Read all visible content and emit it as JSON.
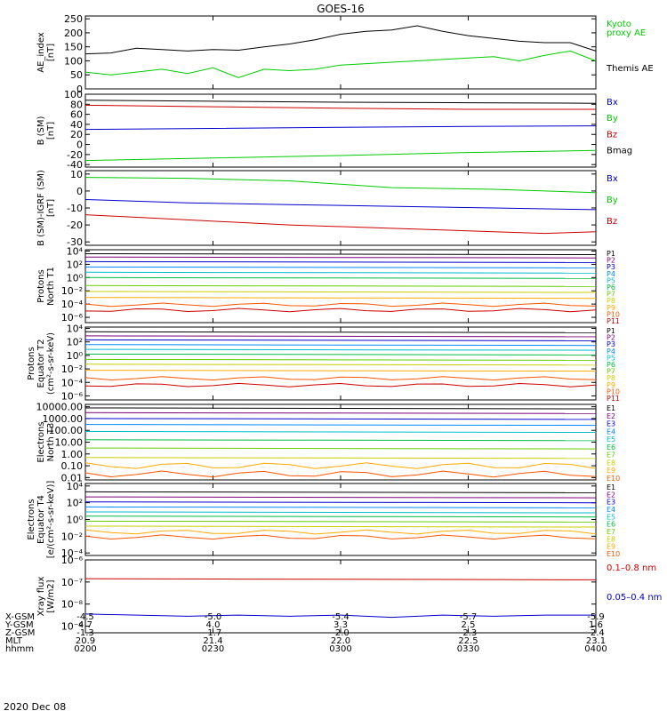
{
  "title": "GOES-16",
  "colors": {
    "black": "#000000",
    "green": "#00cc00",
    "blue": "#0000cc",
    "red": "#cc0000",
    "p": [
      "#000000",
      "#7a007a",
      "#0000cc",
      "#0088ff",
      "#00bbcc",
      "#00bb44",
      "#66cc00",
      "#cccc00",
      "#ffaa00",
      "#ff5500",
      "#cc0000"
    ]
  },
  "chart_data": [
    {
      "id": "ae",
      "type": "line",
      "ylabel": [
        "AE_index",
        "[nT]"
      ],
      "ticks": [
        "250",
        "200",
        "150",
        "100",
        "50",
        "0"
      ],
      "tick_values": [
        250,
        200,
        150,
        100,
        50,
        0
      ],
      "ylim": [
        0,
        260
      ],
      "legend": [
        {
          "text": "Kyoto",
          "color": "green"
        },
        {
          "text": "proxy AE",
          "color": "green"
        },
        {
          "text": "Themis AE",
          "color": "black"
        }
      ],
      "series": [
        {
          "color": "black",
          "x": [
            0,
            0.05,
            0.1,
            0.15,
            0.2,
            0.25,
            0.3,
            0.35,
            0.4,
            0.45,
            0.5,
            0.55,
            0.6,
            0.65,
            0.7,
            0.75,
            0.8,
            0.85,
            0.9,
            0.95,
            1.0
          ],
          "y": [
            125,
            128,
            145,
            140,
            135,
            140,
            138,
            150,
            160,
            175,
            195,
            205,
            210,
            225,
            205,
            190,
            180,
            170,
            165,
            165,
            135
          ]
        },
        {
          "color": "green",
          "x": [
            0,
            0.05,
            0.1,
            0.15,
            0.2,
            0.25,
            0.3,
            0.35,
            0.4,
            0.45,
            0.5,
            0.55,
            0.6,
            0.65,
            0.7,
            0.75,
            0.8,
            0.85,
            0.9,
            0.95,
            1.0
          ],
          "y": [
            60,
            50,
            60,
            70,
            55,
            75,
            40,
            70,
            65,
            70,
            85,
            90,
            95,
            100,
            105,
            110,
            115,
            100,
            120,
            135,
            100
          ]
        }
      ]
    },
    {
      "id": "bsm",
      "type": "line",
      "ylabel": [
        "B (SM)",
        "[nT]"
      ],
      "ticks": [
        "100",
        "80",
        "60",
        "40",
        "20",
        "0",
        "-20",
        "-40"
      ],
      "tick_values": [
        100,
        80,
        60,
        40,
        20,
        0,
        -20,
        -40
      ],
      "ylim": [
        -45,
        100
      ],
      "legend": [
        {
          "text": "Bx",
          "color": "blue"
        },
        {
          "text": "By",
          "color": "green"
        },
        {
          "text": "Bz",
          "color": "red"
        },
        {
          "text": "Bmag",
          "color": "black"
        }
      ],
      "series": [
        {
          "color": "black",
          "x": [
            0,
            0.25,
            0.5,
            0.75,
            1.0
          ],
          "y": [
            88,
            86,
            84,
            83,
            82
          ]
        },
        {
          "color": "red",
          "x": [
            0,
            0.25,
            0.5,
            0.75,
            1.0
          ],
          "y": [
            78,
            75,
            72,
            70,
            70
          ]
        },
        {
          "color": "blue",
          "x": [
            0,
            0.25,
            0.5,
            0.75,
            1.0
          ],
          "y": [
            30,
            32,
            34,
            36,
            37
          ]
        },
        {
          "color": "green",
          "x": [
            0,
            0.25,
            0.5,
            0.75,
            1.0
          ],
          "y": [
            -32,
            -27,
            -22,
            -16,
            -12
          ]
        }
      ]
    },
    {
      "id": "bigrf",
      "type": "line",
      "ylabel": [
        "B (SM)-IGRF (SM)",
        "[nT]"
      ],
      "ticks": [
        "10",
        "0",
        "-10",
        "-20",
        "-30"
      ],
      "tick_values": [
        10,
        0,
        -10,
        -20,
        -30
      ],
      "ylim": [
        -32,
        12
      ],
      "legend": [
        {
          "text": "Bx",
          "color": "blue"
        },
        {
          "text": "By",
          "color": "green"
        },
        {
          "text": "Bz",
          "color": "red"
        }
      ],
      "series": [
        {
          "color": "green",
          "x": [
            0,
            0.2,
            0.4,
            0.5,
            0.6,
            0.8,
            1.0
          ],
          "y": [
            8,
            7.5,
            6,
            4,
            2,
            1,
            -1
          ]
        },
        {
          "color": "blue",
          "x": [
            0,
            0.2,
            0.4,
            0.6,
            0.8,
            1.0
          ],
          "y": [
            -5,
            -7,
            -8,
            -9,
            -10,
            -11
          ]
        },
        {
          "color": "red",
          "x": [
            0,
            0.2,
            0.4,
            0.6,
            0.8,
            0.9,
            1.0
          ],
          "y": [
            -14,
            -17,
            -20,
            -22,
            -24,
            -25,
            -24
          ]
        }
      ]
    },
    {
      "id": "pnorth",
      "type": "line",
      "log": true,
      "ylabel": [
        "Protons",
        "North T1"
      ],
      "ticks": [
        "10⁴",
        "10²",
        "10⁰",
        "10⁻²",
        "10⁻⁴",
        "10⁻⁶"
      ],
      "tick_values": [
        4,
        2,
        0,
        -2,
        -4,
        -6
      ],
      "ylim": [
        -6.8,
        4.2
      ],
      "channels": [
        "P1",
        "P2",
        "P3",
        "P4",
        "P5",
        "P6",
        "P7",
        "P8",
        "P9",
        "P10",
        "P11"
      ],
      "levels": [
        3.6,
        3.1,
        2.4,
        1.6,
        0.8,
        0.0,
        -1.2,
        -2.1,
        -3.0,
        -4.1,
        -4.9
      ]
    },
    {
      "id": "pequator",
      "type": "line",
      "log": true,
      "ylabel": [
        "Protons",
        "Equator T2",
        "(cm²-s-sr-keV)"
      ],
      "ticks": [
        "10⁴",
        "10²",
        "10⁰",
        "10⁻²",
        "10⁻⁴",
        "10⁻⁶"
      ],
      "tick_values": [
        4,
        2,
        0,
        -2,
        -4,
        -6
      ],
      "ylim": [
        -6.6,
        4.2
      ],
      "channels": [
        "P1",
        "P2",
        "P3",
        "P4",
        "P5",
        "P6",
        "P7",
        "P8",
        "P9",
        "P10",
        "P11"
      ],
      "levels": [
        3.5,
        2.9,
        2.3,
        1.6,
        0.9,
        0.2,
        -0.6,
        -1.3,
        -2.2,
        -3.4,
        -4.4
      ]
    },
    {
      "id": "enorth",
      "type": "line",
      "log": true,
      "ylabel": [
        "Electrons",
        "North T3"
      ],
      "ticks": [
        "10000.00",
        "1000.00",
        "100.00",
        "10.00",
        "1.00",
        "0.10",
        "0.01"
      ],
      "tick_values": [
        4,
        3,
        2,
        1,
        0,
        -1,
        -2
      ],
      "ylim": [
        -2.2,
        4.2
      ],
      "channels": [
        "E1",
        "E2",
        "E3",
        "E4",
        "E5",
        "E6",
        "E7",
        "E8",
        "E9",
        "E10"
      ],
      "levels": [
        3.9,
        3.5,
        3.0,
        2.5,
        1.9,
        1.2,
        0.5,
        -0.3,
        -1.0,
        -1.7
      ]
    },
    {
      "id": "eequator",
      "type": "line",
      "log": true,
      "ylabel": [
        "Electrons",
        "Equator T4",
        "[e/(cm²-s-sr-keV)]"
      ],
      "ticks": [
        "10⁴",
        "10²",
        "10⁰",
        "10⁻²",
        "10⁻⁴"
      ],
      "tick_values": [
        4,
        2,
        0,
        -2,
        -4
      ],
      "ylim": [
        -4.3,
        4.3
      ],
      "channels": [
        "E1",
        "E2",
        "E3",
        "E4",
        "E5",
        "E6",
        "E7",
        "E8",
        "E9",
        "E10"
      ],
      "levels": [
        3.3,
        2.7,
        2.1,
        1.5,
        0.9,
        0.4,
        -0.2,
        -0.8,
        -1.5,
        -2.1
      ]
    },
    {
      "id": "xray",
      "type": "line",
      "log": true,
      "ylabel": [
        "Xray flux",
        "[W/m2]"
      ],
      "ticks": [
        "10⁻⁶",
        "10⁻⁷",
        "10⁻⁸",
        "10⁻⁹"
      ],
      "tick_values": [
        -6,
        -7,
        -8,
        -9
      ],
      "ylim": [
        -9.3,
        -6
      ],
      "legend": [
        {
          "text": "0.1–0.8 nm",
          "color": "red"
        },
        {
          "text": "0.05–0.4 nm",
          "color": "blue"
        }
      ],
      "series": [
        {
          "color": "red",
          "x": [
            0,
            0.3,
            0.6,
            1.0
          ],
          "y": [
            -6.85,
            -6.87,
            -6.88,
            -6.9
          ]
        },
        {
          "color": "blue",
          "x": [
            0,
            0.1,
            0.2,
            0.3,
            0.4,
            0.5,
            0.6,
            0.7,
            0.8,
            0.9,
            1.0
          ],
          "y": [
            -8.45,
            -8.5,
            -8.55,
            -8.5,
            -8.55,
            -8.5,
            -8.6,
            -8.5,
            -8.55,
            -8.5,
            -8.5
          ]
        }
      ]
    }
  ],
  "xaxis": {
    "positions": [
      0,
      0.25,
      0.5,
      0.75,
      1.0
    ],
    "row_labels": [
      "X-GSM",
      "Y-GSM",
      "Z-GSM",
      "MLT",
      "hhmm"
    ],
    "rows": [
      [
        "-4.5",
        "-5.0",
        "-5.4",
        "-5.7",
        "-5.9"
      ],
      [
        "4.7",
        "4.0",
        "3.3",
        "2.5",
        "1.6"
      ],
      [
        "-1.3",
        "-1.7",
        "-2.0",
        "-2.3",
        "-2.4"
      ],
      [
        "20.9",
        "21.4",
        "22.0",
        "22.5",
        "23.1"
      ],
      [
        "0200",
        "0230",
        "0300",
        "0330",
        "0400"
      ]
    ],
    "date": "2020 Dec 08"
  }
}
